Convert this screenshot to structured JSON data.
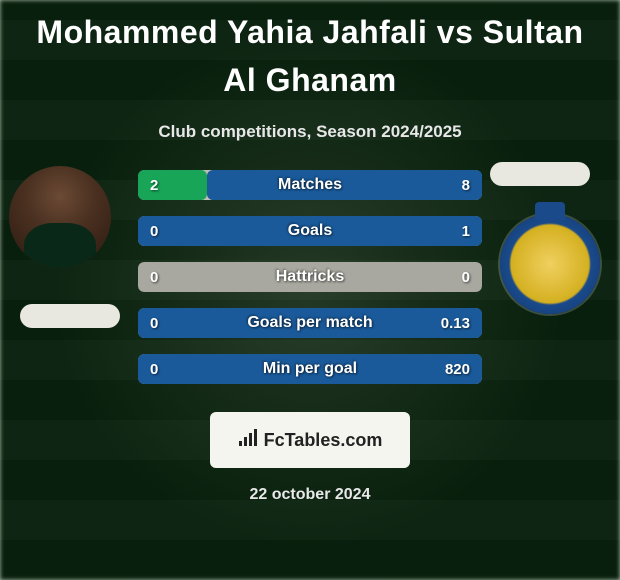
{
  "title": "Mohammed Yahia Jahfali vs Sultan Al Ghanam",
  "subtitle": "Club competitions, Season 2024/2025",
  "date": "22 october 2024",
  "brand": "FcTables.com",
  "colors": {
    "left_fill": "#18a558",
    "right_fill": "#1a5a9a",
    "neutral_bg": "#bfbfb8",
    "neutral_inner": "#a8a8a0",
    "highlight_bg_dark": "#2e2e2e"
  },
  "stats": [
    {
      "label": "Matches",
      "left_val": "2",
      "right_val": "8",
      "left_pct": 20,
      "right_pct": 80,
      "left_color": "#18a558",
      "right_color": "#1a5a9a",
      "track_color": "#bfbfb8"
    },
    {
      "label": "Goals",
      "left_val": "0",
      "right_val": "1",
      "left_pct": 0,
      "right_pct": 100,
      "left_color": "#18a558",
      "right_color": "#1a5a9a",
      "track_color": "#bfbfb8"
    },
    {
      "label": "Hattricks",
      "left_val": "0",
      "right_val": "0",
      "left_pct": 0,
      "right_pct": 0,
      "left_color": "#18a558",
      "right_color": "#1a5a9a",
      "track_color": "#a8a8a0"
    },
    {
      "label": "Goals per match",
      "left_val": "0",
      "right_val": "0.13",
      "left_pct": 0,
      "right_pct": 100,
      "left_color": "#18a558",
      "right_color": "#1a5a9a",
      "track_color": "#bfbfb8"
    },
    {
      "label": "Min per goal",
      "left_val": "0",
      "right_val": "820",
      "left_pct": 0,
      "right_pct": 100,
      "left_color": "#18a558",
      "right_color": "#1a5a9a",
      "track_color": "#bfbfb8"
    }
  ]
}
